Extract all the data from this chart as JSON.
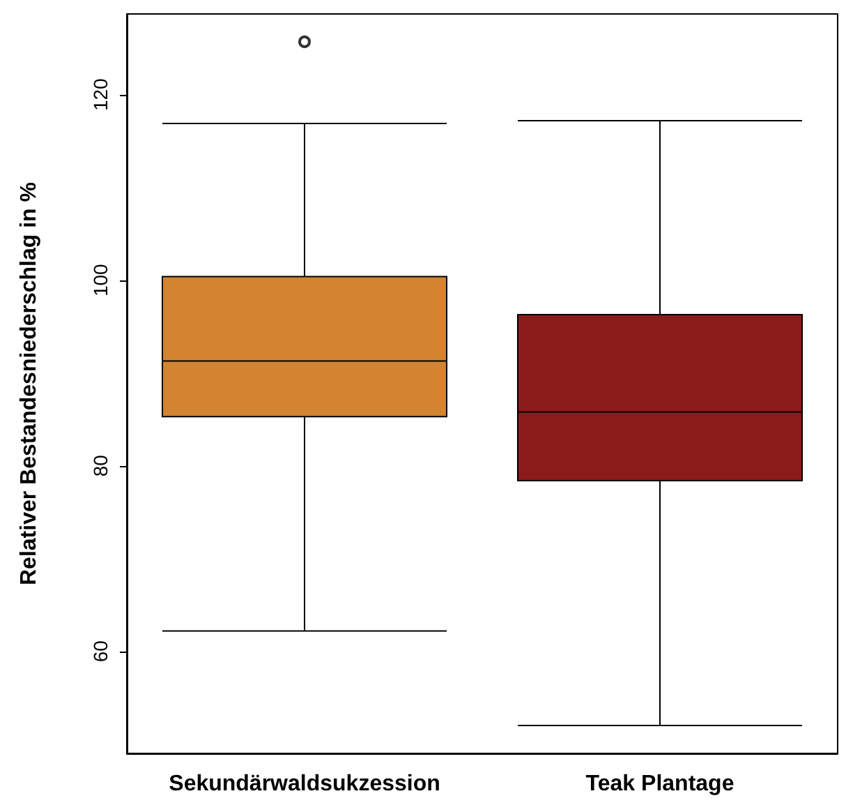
{
  "chart_data": {
    "type": "box",
    "ylabel": "Relativer Bestandesniederschlag in %",
    "categories": [
      "Sekundärwaldsukzession",
      "Teak Plantage"
    ],
    "boxes": [
      {
        "low": 62.2,
        "q1": 85.3,
        "median": 91.3,
        "q3": 100.4,
        "high": 116.9,
        "outliers": [
          125.7
        ]
      },
      {
        "low": 52,
        "q1": 78.4,
        "median": 85.8,
        "q3": 96.3,
        "high": 117.2
      }
    ],
    "colors": [
      "#d38430",
      "#8b1a1a"
    ],
    "ylim": [
      49,
      128.7
    ],
    "yticks": [
      60,
      80,
      100,
      120
    ],
    "grid": false
  }
}
